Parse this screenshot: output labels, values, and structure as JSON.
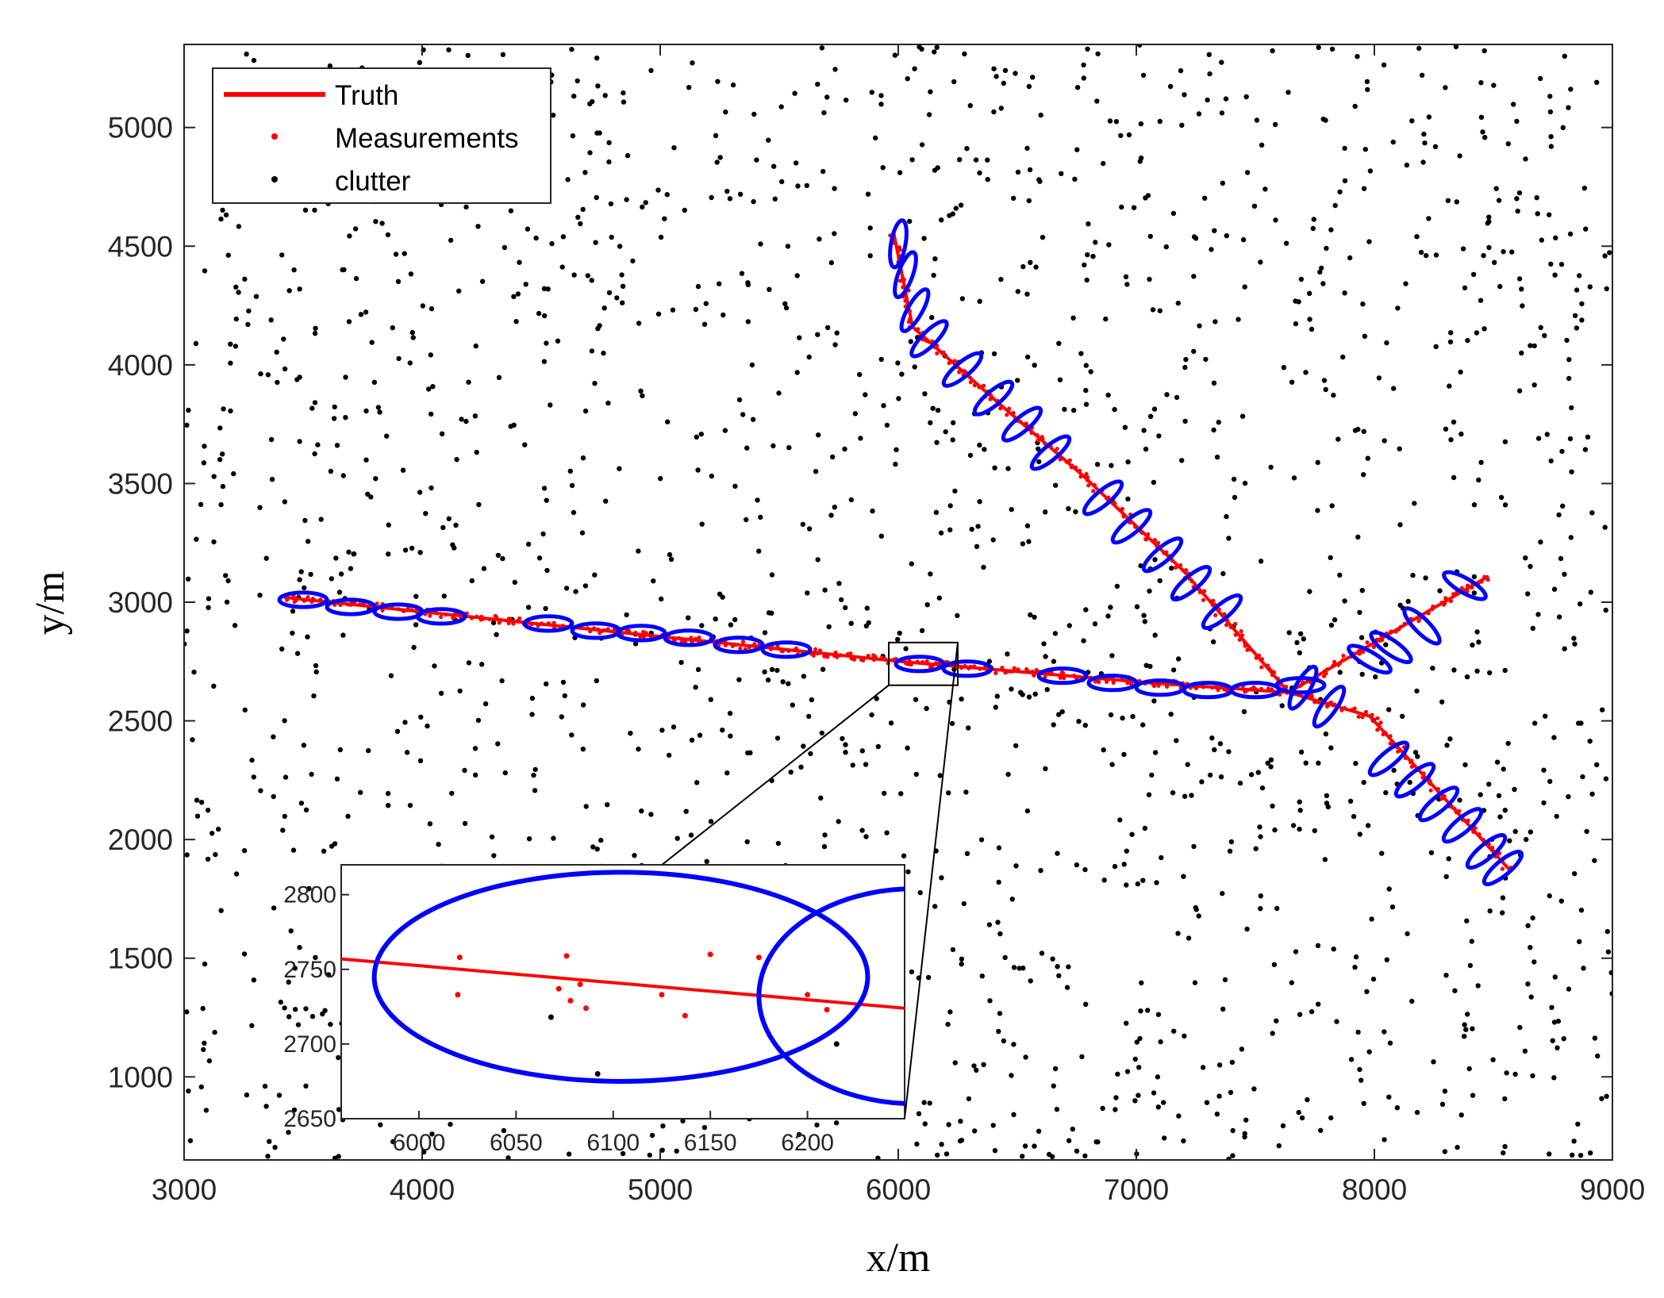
{
  "chart_data": {
    "type": "scatter",
    "xlabel": "x/m",
    "ylabel": "y/m",
    "xlim": [
      3000,
      9000
    ],
    "ylim": [
      650,
      5350
    ],
    "xticks": [
      3000,
      4000,
      5000,
      6000,
      7000,
      8000,
      9000
    ],
    "yticks": [
      1000,
      1500,
      2000,
      2500,
      3000,
      3500,
      4000,
      4500,
      5000
    ],
    "grid": false,
    "legend": {
      "placement": "top-left",
      "entries": [
        {
          "label": "Truth",
          "color": "#ff0000",
          "style": "line"
        },
        {
          "label": "Measurements",
          "color": "#ff0000",
          "style": "dot"
        },
        {
          "label": "clutter",
          "color": "#000000",
          "style": "dot"
        }
      ]
    },
    "colors": {
      "truth": "#ff0000",
      "measurement": "#ff0000",
      "clutter": "#000000",
      "gate": "#0000ff",
      "zoom_box": "#000000"
    },
    "clutter_count": 1800,
    "series": [
      {
        "name": "Truth",
        "tracks": [
          [
            [
              3420,
              3020
            ],
            [
              6010,
              2750
            ],
            [
              7060,
              2660
            ],
            [
              7640,
              2620
            ],
            [
              8480,
              3110
            ]
          ],
          [
            [
              5980,
              4560
            ],
            [
              6060,
              4160
            ],
            [
              6420,
              3840
            ],
            [
              6780,
              3530
            ],
            [
              7200,
              3130
            ],
            [
              7640,
              2620
            ],
            [
              7980,
              2520
            ],
            [
              8570,
              1870
            ]
          ]
        ]
      }
    ],
    "gate_ellipses": [
      {
        "center": [
          3500,
          3010
        ],
        "rx": 100,
        "ry": 95,
        "angle": 0
      },
      {
        "center": [
          3700,
          2980
        ],
        "rx": 100,
        "ry": 95,
        "angle": 0
      },
      {
        "center": [
          3900,
          2960
        ],
        "rx": 100,
        "ry": 95,
        "angle": 0
      },
      {
        "center": [
          4080,
          2940
        ],
        "rx": 100,
        "ry": 95,
        "angle": 0
      },
      {
        "center": [
          4530,
          2910
        ],
        "rx": 100,
        "ry": 95,
        "angle": 0
      },
      {
        "center": [
          4730,
          2880
        ],
        "rx": 100,
        "ry": 95,
        "angle": 0
      },
      {
        "center": [
          4920,
          2870
        ],
        "rx": 100,
        "ry": 95,
        "angle": 0
      },
      {
        "center": [
          5120,
          2850
        ],
        "rx": 100,
        "ry": 95,
        "angle": 0
      },
      {
        "center": [
          5330,
          2820
        ],
        "rx": 100,
        "ry": 95,
        "angle": 0
      },
      {
        "center": [
          5530,
          2800
        ],
        "rx": 100,
        "ry": 95,
        "angle": 0
      },
      {
        "center": [
          6090,
          2740
        ],
        "rx": 100,
        "ry": 95,
        "angle": 0
      },
      {
        "center": [
          6290,
          2720
        ],
        "rx": 100,
        "ry": 95,
        "angle": 0
      },
      {
        "center": [
          6690,
          2690
        ],
        "rx": 100,
        "ry": 95,
        "angle": 0
      },
      {
        "center": [
          6900,
          2660
        ],
        "rx": 100,
        "ry": 95,
        "angle": 0
      },
      {
        "center": [
          7100,
          2640
        ],
        "rx": 100,
        "ry": 95,
        "angle": 0
      },
      {
        "center": [
          7300,
          2630
        ],
        "rx": 100,
        "ry": 95,
        "angle": 0
      },
      {
        "center": [
          7500,
          2630
        ],
        "rx": 100,
        "ry": 95,
        "angle": 0
      },
      {
        "center": [
          7690,
          2650
        ],
        "rx": 100,
        "ry": 95,
        "angle": 0
      },
      {
        "center": [
          7980,
          2760
        ],
        "rx": 100,
        "ry": 95,
        "angle": -30
      },
      {
        "center": [
          8070,
          2810
        ],
        "rx": 100,
        "ry": 95,
        "angle": -35
      },
      {
        "center": [
          8200,
          2900
        ],
        "rx": 100,
        "ry": 95,
        "angle": -45
      },
      {
        "center": [
          8380,
          3070
        ],
        "rx": 100,
        "ry": 95,
        "angle": -30
      },
      {
        "center": [
          6000,
          4510
        ],
        "rx": 100,
        "ry": 95,
        "angle": 80
      },
      {
        "center": [
          6030,
          4380
        ],
        "rx": 100,
        "ry": 95,
        "angle": 70
      },
      {
        "center": [
          6070,
          4230
        ],
        "rx": 100,
        "ry": 95,
        "angle": 60
      },
      {
        "center": [
          6130,
          4110
        ],
        "rx": 100,
        "ry": 95,
        "angle": 45
      },
      {
        "center": [
          6270,
          3980
        ],
        "rx": 100,
        "ry": 95,
        "angle": 40
      },
      {
        "center": [
          6400,
          3860
        ],
        "rx": 100,
        "ry": 95,
        "angle": 40
      },
      {
        "center": [
          6520,
          3750
        ],
        "rx": 100,
        "ry": 95,
        "angle": 40
      },
      {
        "center": [
          6640,
          3630
        ],
        "rx": 100,
        "ry": 95,
        "angle": 40
      },
      {
        "center": [
          6860,
          3440
        ],
        "rx": 100,
        "ry": 95,
        "angle": 40
      },
      {
        "center": [
          6980,
          3320
        ],
        "rx": 100,
        "ry": 95,
        "angle": 40
      },
      {
        "center": [
          7110,
          3200
        ],
        "rx": 100,
        "ry": 95,
        "angle": 40
      },
      {
        "center": [
          7230,
          3080
        ],
        "rx": 100,
        "ry": 95,
        "angle": 40
      },
      {
        "center": [
          7360,
          2960
        ],
        "rx": 100,
        "ry": 95,
        "angle": 40
      },
      {
        "center": [
          7700,
          2640
        ],
        "rx": 100,
        "ry": 95,
        "angle": 60
      },
      {
        "center": [
          7810,
          2560
        ],
        "rx": 100,
        "ry": 95,
        "angle": 55
      },
      {
        "center": [
          8060,
          2340
        ],
        "rx": 100,
        "ry": 95,
        "angle": 40
      },
      {
        "center": [
          8170,
          2250
        ],
        "rx": 100,
        "ry": 95,
        "angle": 40
      },
      {
        "center": [
          8270,
          2150
        ],
        "rx": 100,
        "ry": 95,
        "angle": 40
      },
      {
        "center": [
          8370,
          2060
        ],
        "rx": 100,
        "ry": 95,
        "angle": 40
      },
      {
        "center": [
          8470,
          1950
        ],
        "rx": 100,
        "ry": 95,
        "angle": 40
      },
      {
        "center": [
          8540,
          1880
        ],
        "rx": 100,
        "ry": 95,
        "angle": 40
      }
    ],
    "zoom_region": {
      "xlim": [
        5960,
        6250
      ],
      "ylim": [
        2650,
        2830
      ]
    },
    "inset": {
      "xlim": [
        5960,
        6250
      ],
      "ylim": [
        2650,
        2820
      ],
      "xticks": [
        6000,
        6050,
        6100,
        6150,
        6200
      ],
      "yticks": [
        2650,
        2700,
        2750,
        2800
      ],
      "truth": [
        [
          5960,
          2757
        ],
        [
          6250,
          2724
        ]
      ],
      "measurements": [
        [
          6021,
          2758
        ],
        [
          6020,
          2733
        ],
        [
          6076,
          2759
        ],
        [
          6072,
          2737
        ],
        [
          6083,
          2740
        ],
        [
          6078,
          2729
        ],
        [
          6086,
          2724
        ],
        [
          6125,
          2733
        ],
        [
          6137,
          2719
        ],
        [
          6150,
          2760
        ],
        [
          6175,
          2758
        ],
        [
          6200,
          2733
        ],
        [
          6210,
          2723
        ]
      ],
      "clutter": [
        [
          6068,
          2718
        ],
        [
          6092,
          2680
        ],
        [
          6215,
          2700
        ]
      ],
      "ellipses": [
        {
          "center": [
            6104,
            2745
          ],
          "rx": 127,
          "ry": 70,
          "angle": 0
        },
        {
          "center": [
            6255,
            2732
          ],
          "rx": 80,
          "ry": 72,
          "angle": 0
        }
      ]
    }
  }
}
